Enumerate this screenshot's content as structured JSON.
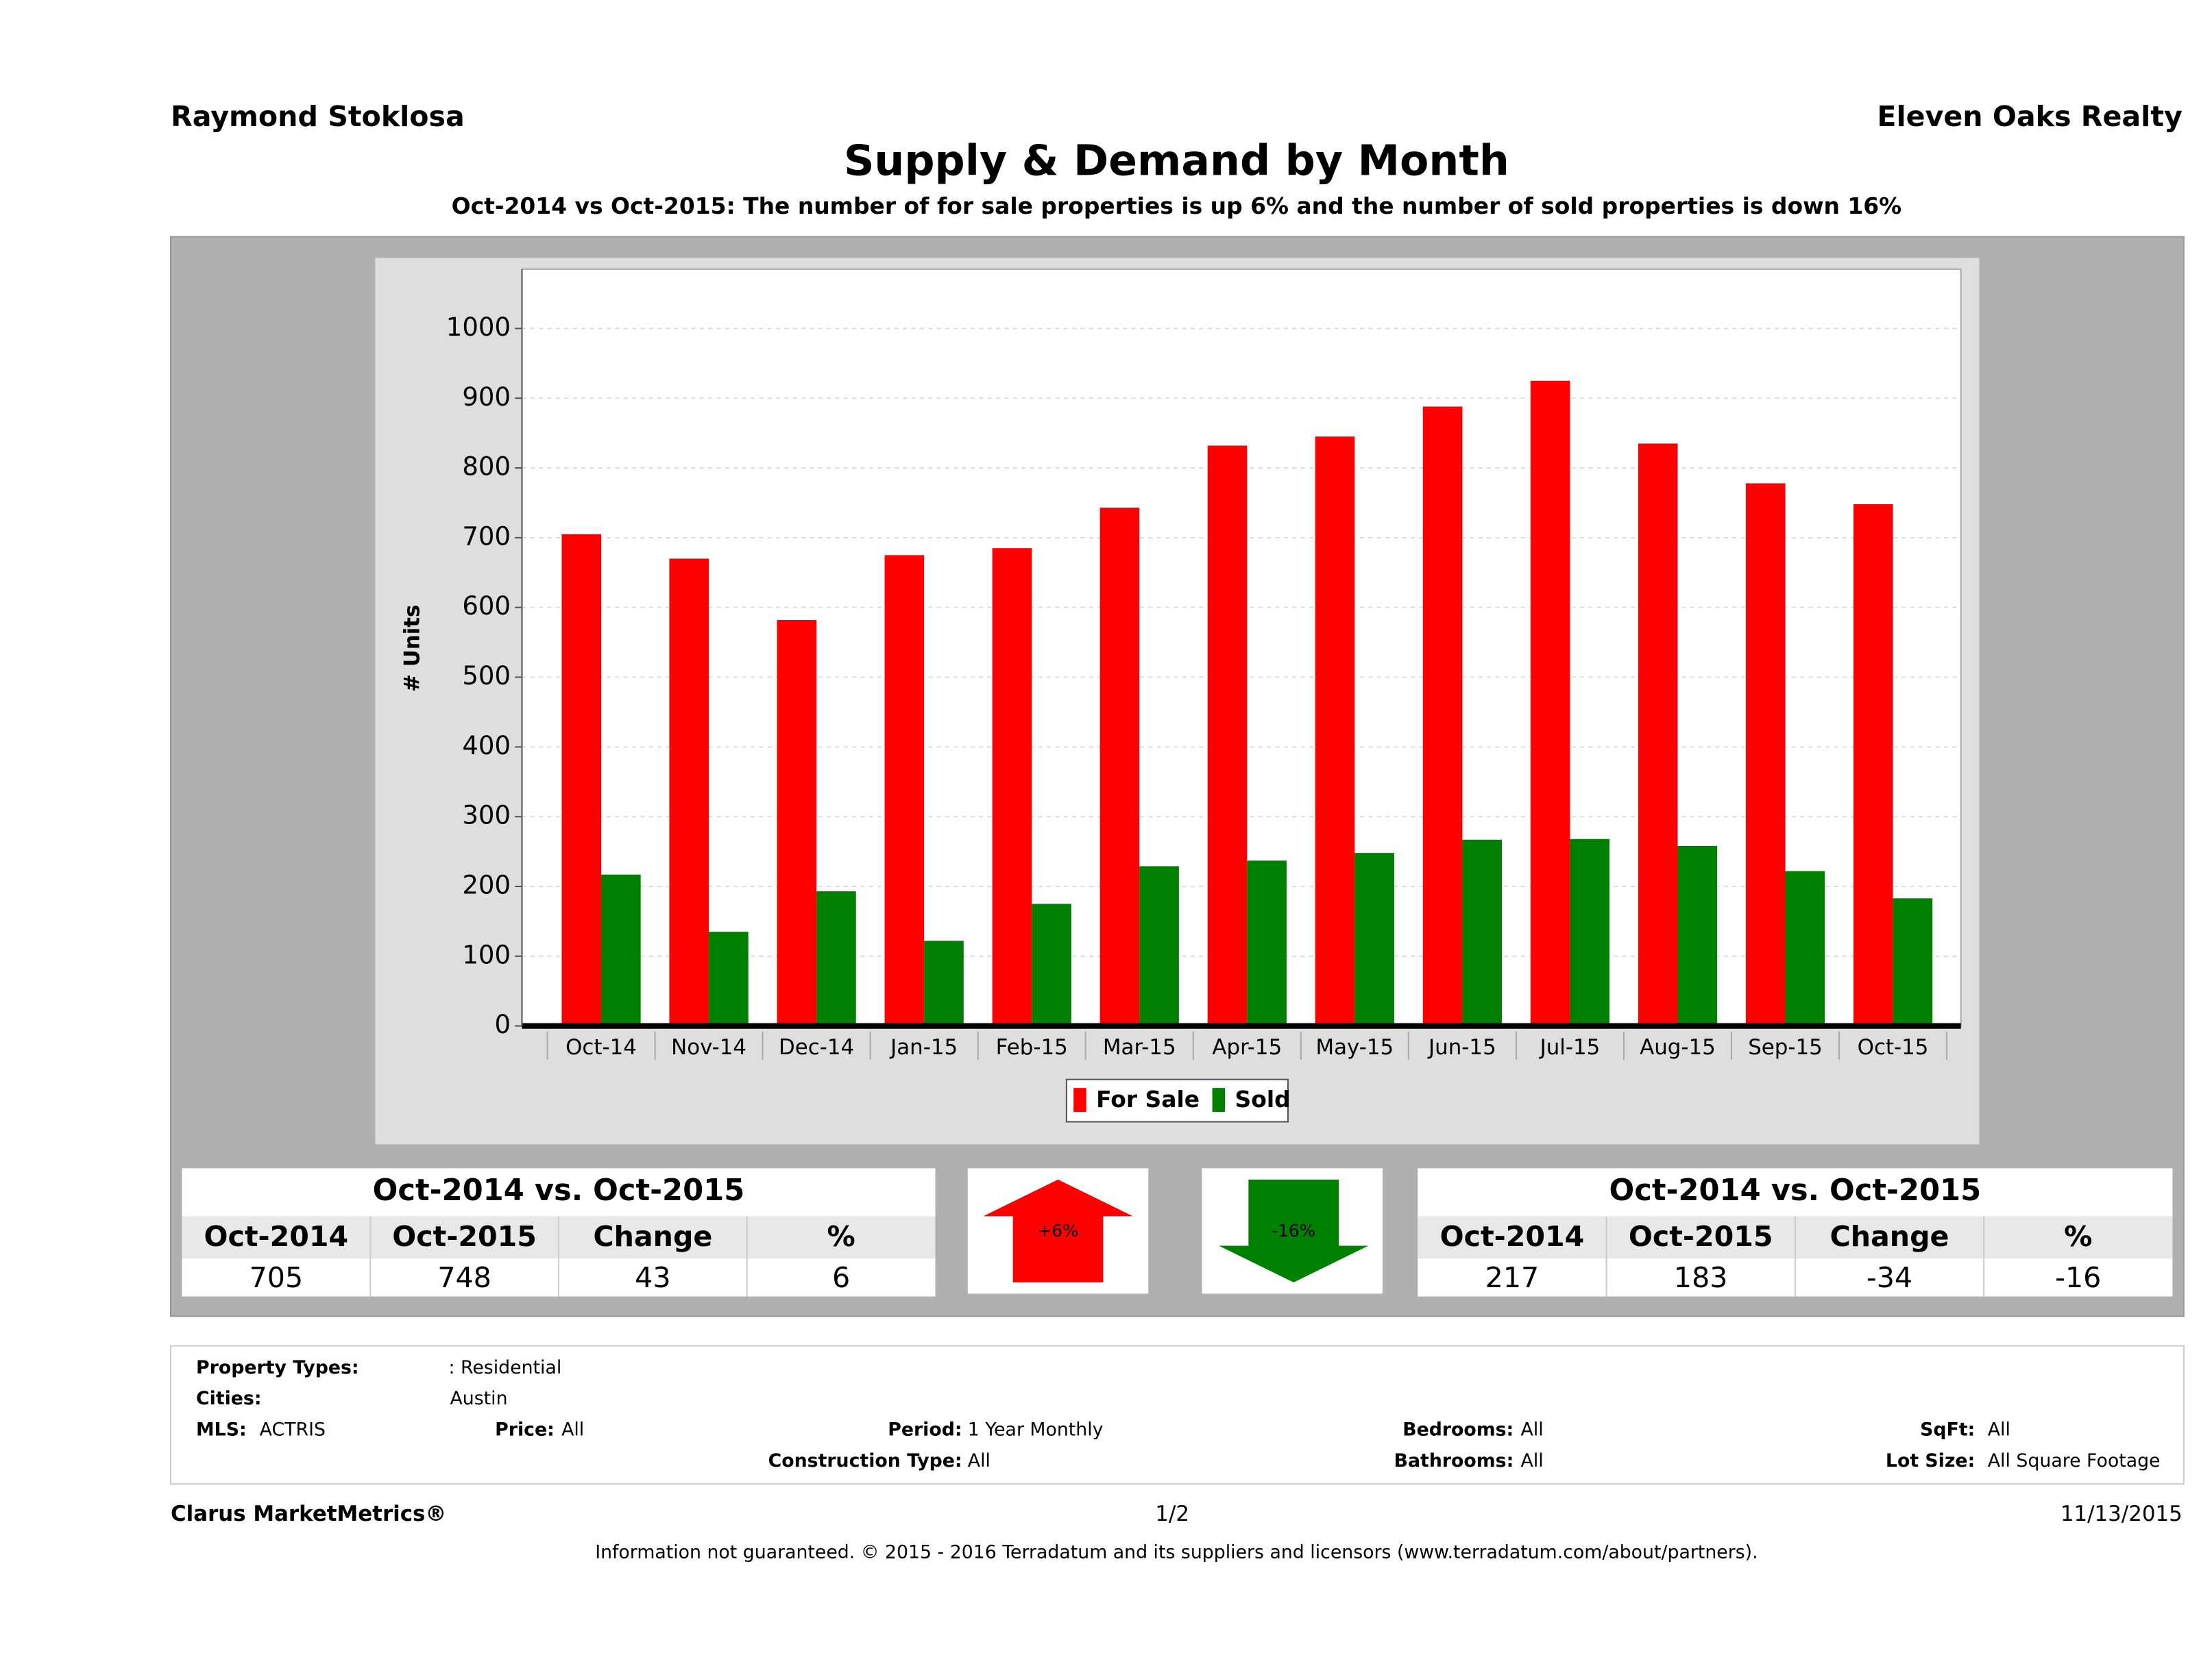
{
  "header": {
    "left": "Raymond Stoklosa",
    "right": "Eleven Oaks Realty"
  },
  "chart_data": {
    "type": "bar",
    "title": "Supply & Demand by Month",
    "subtitle": "Oct-2014 vs Oct-2015: The number of for sale properties is up 6% and the number of sold properties is down 16%",
    "y_label": "# Units",
    "categories": [
      "Oct-14",
      "Nov-14",
      "Dec-14",
      "Jan-15",
      "Feb-15",
      "Mar-15",
      "Apr-15",
      "May-15",
      "Jun-15",
      "Jul-15",
      "Aug-15",
      "Sep-15",
      "Oct-15"
    ],
    "series": [
      {
        "name": "For Sale",
        "color": "#ff0000",
        "values": [
          705,
          670,
          582,
          675,
          685,
          743,
          832,
          845,
          888,
          925,
          835,
          778,
          748
        ]
      },
      {
        "name": "Sold",
        "color": "#008000",
        "values": [
          217,
          135,
          193,
          122,
          175,
          229,
          237,
          248,
          267,
          268,
          258,
          222,
          183
        ]
      }
    ],
    "ylim": [
      0,
      1085
    ],
    "yticks": [
      0,
      100,
      200,
      300,
      400,
      500,
      600,
      700,
      800,
      900,
      1000
    ],
    "grid": true,
    "legend": "bottom"
  },
  "tables": [
    {
      "title": "Oct-2014 vs. Oct-2015",
      "columns": [
        "Oct-2014",
        "Oct-2015",
        "Change",
        "%"
      ],
      "row": [
        705,
        748,
        43,
        6
      ]
    },
    {
      "title": "Oct-2014 vs. Oct-2015",
      "columns": [
        "Oct-2014",
        "Oct-2015",
        "Change",
        "%"
      ],
      "row": [
        217,
        183,
        -34,
        -16
      ]
    }
  ],
  "indicators": [
    {
      "label": "+6%",
      "direction": "up",
      "color": "#ff0000"
    },
    {
      "label": "-16%",
      "direction": "down",
      "color": "#008000"
    }
  ],
  "filters": [
    {
      "label": "Property Types:",
      "value": ": Residential"
    },
    {
      "label": "Cities:",
      "value": "Austin"
    },
    {
      "label": "MLS:",
      "value": "ACTRIS"
    },
    {
      "label": "Price:",
      "value": "All"
    },
    {
      "label": "Period:",
      "value": "1 Year Monthly"
    },
    {
      "label": "Bedrooms:",
      "value": "All"
    },
    {
      "label": "SqFt:",
      "value": "All"
    },
    {
      "label": "Construction Type:",
      "value": "All"
    },
    {
      "label": "Bathrooms:",
      "value": "All"
    },
    {
      "label": "Lot Size:",
      "value": "All Square Footage"
    }
  ],
  "footer": {
    "brand": "Clarus MarketMetrics®",
    "page": "1/2",
    "date": "11/13/2015",
    "disclaimer": "Information not guaranteed. © 2015 - 2016 Terradatum and its suppliers and licensors (www.terradatum.com/about/partners)."
  }
}
